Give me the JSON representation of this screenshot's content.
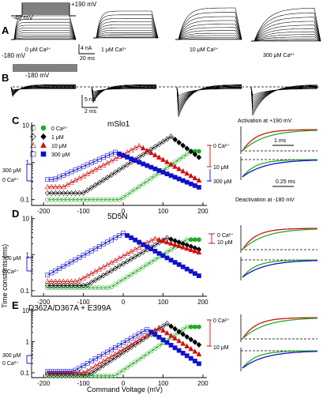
{
  "panels": {
    "A": {
      "letter": "A",
      "protocol_top": "+190 mV",
      "protocol_hold": "-40 mV",
      "protocol_bottom": "-180 mV",
      "conditions": [
        "0 μM Ca²⁺",
        "1 μM Ca²⁺",
        "10 μM Ca²⁺",
        "300 μM Ca²⁺"
      ],
      "scale_current": "4 nA",
      "scale_time": "20 ms"
    },
    "B": {
      "letter": "B",
      "protocol_label": "-180 mV",
      "scale_current": "5 nA",
      "scale_time": "2 ms"
    },
    "C": {
      "letter": "C",
      "title": "mSlo1",
      "legend": [
        {
          "label": "0 Ca²⁺",
          "color": "#22aa22",
          "open": "circle",
          "filled": "circle"
        },
        {
          "label": "1 μM",
          "color": "#000000",
          "open": "diamond",
          "filled": "diamond"
        },
        {
          "label": "10 μM",
          "color": "#cc1111",
          "open": "triangle",
          "filled": "triangle"
        },
        {
          "label": "300 μM",
          "color": "#1111cc",
          "open": "square",
          "filled": "square"
        }
      ],
      "left_labels": [
        "300 μM",
        "0 Ca²⁺"
      ],
      "right_labels": [
        "0 Ca²⁺",
        "10 μM",
        "300 μM"
      ],
      "inset_top": "Activation at +190 mV",
      "inset_top_scale": "1 ms",
      "inset_bottom_scale": "0.25 ms",
      "inset_bottom": "Deactivation at -180 mV"
    },
    "D": {
      "letter": "D",
      "title": "5D5N",
      "left_labels": [
        "300 μM",
        "0 Ca²⁺"
      ],
      "right_labels": [
        "0 Ca²⁺",
        "10 μM"
      ]
    },
    "E": {
      "letter": "E",
      "title": "D362A/D367A + E399A",
      "left_labels": [
        "300 μM",
        "0 Ca²⁺"
      ],
      "right_labels": [
        "0 Ca²⁺",
        "10 μM"
      ]
    }
  },
  "axes": {
    "ylabel": "Time constants (ms)",
    "xlabel": "Command Voltage (mV)",
    "xticks": [
      "-200",
      "-100",
      "0",
      "100",
      "200"
    ],
    "yticks": [
      "0.1",
      "1",
      "10"
    ]
  },
  "colors": {
    "0": "#22aa22",
    "1": "#000000",
    "10": "#cc1111",
    "300": "#1111cc"
  },
  "chart_data": [
    {
      "type": "scatter",
      "title": "mSlo1",
      "xlabel": "Command Voltage (mV)",
      "ylabel": "Time constants (ms)",
      "xlim": [
        -230,
        210
      ],
      "ylim": [
        0.07,
        12
      ],
      "yscale": "log",
      "series": [
        {
          "name": "0 Ca²⁺",
          "peak_v": 170,
          "peak_tau": 2.0,
          "tau_min": 0.1,
          "slope_left": 0.0073,
          "slope_right": 0.0
        },
        {
          "name": "1 μM",
          "peak_v": 120,
          "peak_tau": 5.0,
          "tau_min": 0.15,
          "slope_left": 0.0069,
          "slope_right": 0.008
        },
        {
          "name": "10 μM",
          "peak_v": 40,
          "peak_tau": 2.8,
          "tau_min": 0.22,
          "slope_left": 0.0058,
          "slope_right": 0.0062
        },
        {
          "name": "300 μM",
          "peak_v": -20,
          "peak_tau": 1.9,
          "tau_min": 0.35,
          "slope_left": 0.0048,
          "slope_right": 0.0045
        }
      ]
    },
    {
      "type": "scatter",
      "title": "5D5N",
      "xlabel": "Command Voltage (mV)",
      "ylabel": "Time constants (ms)",
      "xlim": [
        -230,
        210
      ],
      "ylim": [
        0.07,
        12
      ],
      "yscale": "log",
      "series": [
        {
          "name": "0 Ca²⁺",
          "peak_v": 160,
          "peak_tau": 2.6,
          "tau_min": 0.12,
          "slope_left": 0.0069,
          "slope_right": 0.0
        },
        {
          "name": "1 μM",
          "peak_v": 110,
          "peak_tau": 2.9,
          "tau_min": 0.14,
          "slope_left": 0.0065,
          "slope_right": 0.004
        },
        {
          "name": "10 μM",
          "peak_v": 80,
          "peak_tau": 2.8,
          "tau_min": 0.18,
          "slope_left": 0.0061,
          "slope_right": 0.0035
        },
        {
          "name": "300 μM",
          "peak_v": 0,
          "peak_tau": 3.9,
          "tau_min": 0.22,
          "slope_left": 0.0061,
          "slope_right": 0.0062
        }
      ]
    },
    {
      "type": "scatter",
      "title": "D362A/D367A + E399A",
      "xlabel": "Command Voltage (mV)",
      "ylabel": "Time constants (ms)",
      "xlim": [
        -230,
        210
      ],
      "ylim": [
        0.07,
        12
      ],
      "yscale": "log",
      "series": [
        {
          "name": "0 Ca²⁺",
          "peak_v": 160,
          "peak_tau": 3.0,
          "tau_min": 0.08,
          "slope_left": 0.0087,
          "slope_right": 0.0
        },
        {
          "name": "1 μM",
          "peak_v": 110,
          "peak_tau": 3.8,
          "tau_min": 0.09,
          "slope_left": 0.0084,
          "slope_right": 0.0085
        },
        {
          "name": "10 μM",
          "peak_v": 90,
          "peak_tau": 2.8,
          "tau_min": 0.1,
          "slope_left": 0.0077,
          "slope_right": 0.0085
        },
        {
          "name": "300 μM",
          "peak_v": 60,
          "peak_tau": 2.5,
          "tau_min": 0.11,
          "slope_left": 0.0073,
          "slope_right": 0.0085
        }
      ]
    }
  ]
}
